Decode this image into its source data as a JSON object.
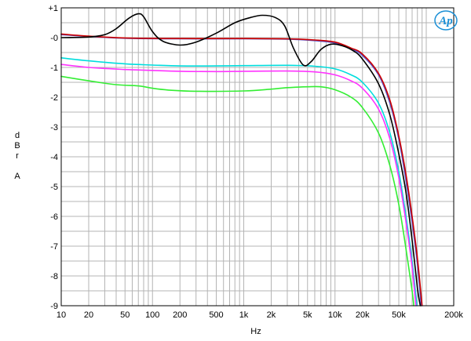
{
  "chart_data": {
    "type": "line",
    "title": "",
    "xlabel": "Hz",
    "ylabel": "d B r A",
    "ylabel_lines": [
      "d",
      "B",
      "r",
      "",
      "A"
    ],
    "x_scale": "log",
    "xlim": [
      10,
      200000
    ],
    "ylim": [
      -9,
      1
    ],
    "grid": true,
    "logo": "Ap",
    "logo_color": "#1a8fd6",
    "x_ticks": [
      {
        "v": 10,
        "label": "10"
      },
      {
        "v": 20,
        "label": "20"
      },
      {
        "v": 50,
        "label": "50"
      },
      {
        "v": 100,
        "label": "100"
      },
      {
        "v": 200,
        "label": "200"
      },
      {
        "v": 500,
        "label": "500"
      },
      {
        "v": 1000,
        "label": "1k"
      },
      {
        "v": 2000,
        "label": "2k"
      },
      {
        "v": 5000,
        "label": "5k"
      },
      {
        "v": 10000,
        "label": "10k"
      },
      {
        "v": 20000,
        "label": "20k"
      },
      {
        "v": 50000,
        "label": "50k"
      },
      {
        "v": 200000,
        "label": "200k"
      }
    ],
    "y_ticks": [
      {
        "v": 1,
        "label": "+1"
      },
      {
        "v": 0,
        "label": "-0"
      },
      {
        "v": -1,
        "label": "-1"
      },
      {
        "v": -2,
        "label": "-2"
      },
      {
        "v": -3,
        "label": "-3"
      },
      {
        "v": -4,
        "label": "-4"
      },
      {
        "v": -5,
        "label": "-5"
      },
      {
        "v": -6,
        "label": "-6"
      },
      {
        "v": -7,
        "label": "-7"
      },
      {
        "v": -8,
        "label": "-8"
      },
      {
        "v": -9,
        "label": "-9"
      }
    ],
    "series": [
      {
        "color": "#000000",
        "points": [
          [
            10,
            0
          ],
          [
            20,
            0.02
          ],
          [
            30,
            0.1
          ],
          [
            40,
            0.3
          ],
          [
            55,
            0.65
          ],
          [
            70,
            0.8
          ],
          [
            80,
            0.7
          ],
          [
            100,
            0.2
          ],
          [
            130,
            -0.12
          ],
          [
            200,
            -0.25
          ],
          [
            300,
            -0.15
          ],
          [
            500,
            0.15
          ],
          [
            800,
            0.5
          ],
          [
            1200,
            0.68
          ],
          [
            1600,
            0.75
          ],
          [
            2200,
            0.68
          ],
          [
            2800,
            0.4
          ],
          [
            3500,
            -0.35
          ],
          [
            4500,
            -0.92
          ],
          [
            5500,
            -0.8
          ],
          [
            7000,
            -0.4
          ],
          [
            9000,
            -0.22
          ],
          [
            12000,
            -0.27
          ],
          [
            16000,
            -0.45
          ],
          [
            20000,
            -0.72
          ],
          [
            30000,
            -1.55
          ],
          [
            40000,
            -2.6
          ],
          [
            50000,
            -3.9
          ],
          [
            60000,
            -5.2
          ],
          [
            70000,
            -6.8
          ],
          [
            80000,
            -8.4
          ],
          [
            86000,
            -9
          ]
        ]
      },
      {
        "color": "#cc0000",
        "points": [
          [
            10,
            0.12
          ],
          [
            20,
            0.05
          ],
          [
            50,
            -0.01
          ],
          [
            200,
            -0.03
          ],
          [
            1000,
            -0.03
          ],
          [
            3000,
            -0.04
          ],
          [
            6000,
            -0.08
          ],
          [
            10000,
            -0.15
          ],
          [
            15000,
            -0.35
          ],
          [
            20000,
            -0.55
          ],
          [
            30000,
            -1.2
          ],
          [
            40000,
            -2.1
          ],
          [
            50000,
            -3.3
          ],
          [
            60000,
            -4.6
          ],
          [
            70000,
            -6.0
          ],
          [
            80000,
            -7.4
          ],
          [
            90000,
            -9
          ]
        ]
      },
      {
        "color": "#5555cc",
        "points": [
          [
            10,
            0.1
          ],
          [
            20,
            0.04
          ],
          [
            50,
            -0.02
          ],
          [
            200,
            -0.04
          ],
          [
            1000,
            -0.04
          ],
          [
            3000,
            -0.05
          ],
          [
            6000,
            -0.1
          ],
          [
            10000,
            -0.18
          ],
          [
            15000,
            -0.38
          ],
          [
            20000,
            -0.6
          ],
          [
            30000,
            -1.25
          ],
          [
            40000,
            -2.2
          ],
          [
            50000,
            -3.4
          ],
          [
            60000,
            -4.8
          ],
          [
            70000,
            -6.2
          ],
          [
            80000,
            -7.6
          ],
          [
            88000,
            -9
          ]
        ]
      },
      {
        "color": "#00dddd",
        "points": [
          [
            10,
            -0.68
          ],
          [
            20,
            -0.78
          ],
          [
            50,
            -0.88
          ],
          [
            100,
            -0.92
          ],
          [
            200,
            -0.95
          ],
          [
            500,
            -0.95
          ],
          [
            1000,
            -0.94
          ],
          [
            3000,
            -0.93
          ],
          [
            6000,
            -0.96
          ],
          [
            10000,
            -1.05
          ],
          [
            15000,
            -1.25
          ],
          [
            20000,
            -1.5
          ],
          [
            30000,
            -2.2
          ],
          [
            40000,
            -3.2
          ],
          [
            50000,
            -4.5
          ],
          [
            60000,
            -6.0
          ],
          [
            70000,
            -7.5
          ],
          [
            79000,
            -9
          ]
        ]
      },
      {
        "color": "#ff33ff",
        "points": [
          [
            10,
            -0.9
          ],
          [
            20,
            -1.0
          ],
          [
            50,
            -1.07
          ],
          [
            100,
            -1.1
          ],
          [
            200,
            -1.13
          ],
          [
            500,
            -1.14
          ],
          [
            1000,
            -1.13
          ],
          [
            3000,
            -1.12
          ],
          [
            6000,
            -1.15
          ],
          [
            10000,
            -1.25
          ],
          [
            15000,
            -1.45
          ],
          [
            20000,
            -1.7
          ],
          [
            30000,
            -2.4
          ],
          [
            40000,
            -3.4
          ],
          [
            50000,
            -4.7
          ],
          [
            60000,
            -6.2
          ],
          [
            70000,
            -7.7
          ],
          [
            77000,
            -9
          ]
        ]
      },
      {
        "color": "#33ee33",
        "points": [
          [
            10,
            -1.3
          ],
          [
            20,
            -1.45
          ],
          [
            40,
            -1.58
          ],
          [
            70,
            -1.62
          ],
          [
            100,
            -1.7
          ],
          [
            150,
            -1.76
          ],
          [
            300,
            -1.8
          ],
          [
            1000,
            -1.79
          ],
          [
            2000,
            -1.73
          ],
          [
            3000,
            -1.68
          ],
          [
            5000,
            -1.65
          ],
          [
            7000,
            -1.65
          ],
          [
            10000,
            -1.75
          ],
          [
            15000,
            -2.0
          ],
          [
            20000,
            -2.35
          ],
          [
            30000,
            -3.2
          ],
          [
            40000,
            -4.3
          ],
          [
            50000,
            -5.6
          ],
          [
            60000,
            -7.1
          ],
          [
            70000,
            -8.5
          ],
          [
            73000,
            -9
          ]
        ]
      }
    ]
  }
}
